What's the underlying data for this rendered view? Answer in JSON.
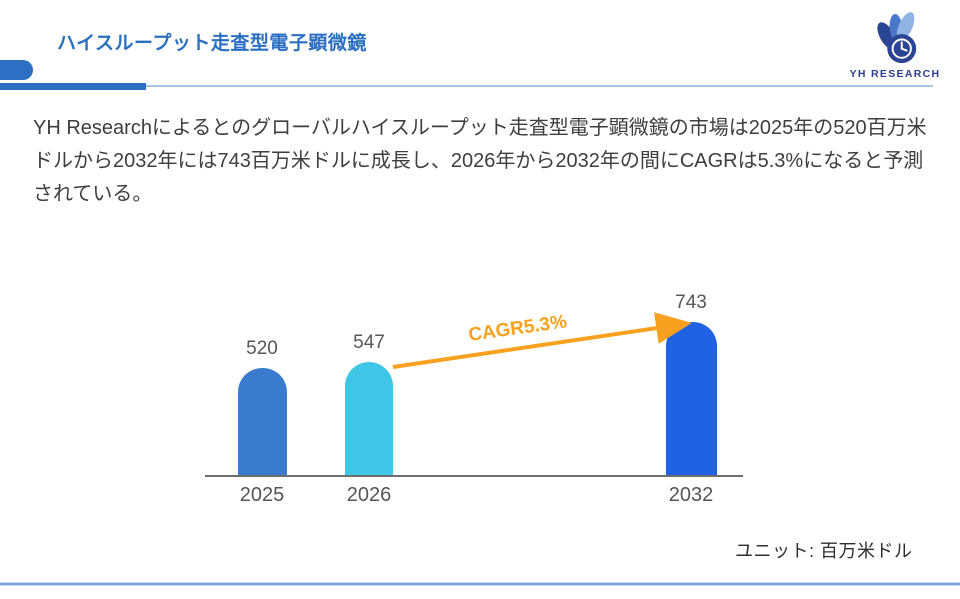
{
  "header": {
    "title": "ハイスループット走査型電子顕微鏡",
    "title_color": "#2b6fc2",
    "logo_text": "YH RESEARCH"
  },
  "summary": {
    "text": "YH Researchによるとのグローバルハイスループット走査型電子顕微鏡の市場は2025年の520百万米ドルから2032年には743百万米ドルに成長し、2026年から2032年の間にCAGRは5.3%になると予測されている。"
  },
  "chart_data": {
    "type": "bar",
    "categories": [
      "2025",
      "2026",
      "2032"
    ],
    "values": [
      520,
      547,
      743
    ],
    "bar_colors": [
      "#3a7bce",
      "#3fc6e6",
      "#2062e4"
    ],
    "value_label_color": "#575757",
    "annotation": {
      "label": "CAGR5.3%",
      "color": "#f8a11e",
      "from_category": "2026",
      "to_category": "2032"
    },
    "unit_label": "ユニット: 百万米ドル",
    "title": "",
    "xlabel": "",
    "ylabel": "",
    "ylim": [
      0,
      800
    ],
    "grid": false,
    "legend": "none"
  }
}
